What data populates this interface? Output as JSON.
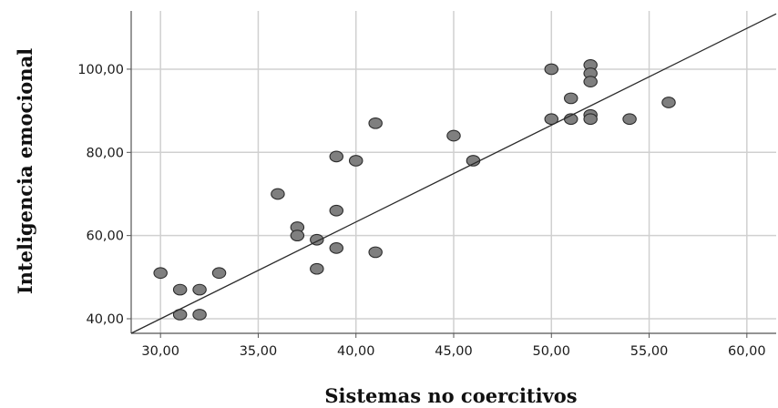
{
  "chart_data": {
    "type": "scatter",
    "title": "",
    "xlabel": "Sistemas no coercitivos",
    "ylabel": "Inteligencia emocional",
    "xlim": [
      28.5,
      61.5
    ],
    "ylim": [
      36.5,
      114
    ],
    "grid": true,
    "x_ticks": [
      30,
      35,
      40,
      45,
      50,
      55,
      60
    ],
    "y_ticks": [
      40,
      60,
      80,
      100
    ],
    "x_tick_labels": [
      "30,00",
      "35,00",
      "40,00",
      "45,00",
      "50,00",
      "55,00",
      "60,00"
    ],
    "y_tick_labels": [
      "40,00",
      "60,00",
      "80,00",
      "100,00"
    ],
    "points": [
      {
        "x": 30,
        "y": 51
      },
      {
        "x": 31,
        "y": 47
      },
      {
        "x": 31,
        "y": 41
      },
      {
        "x": 32,
        "y": 47
      },
      {
        "x": 32,
        "y": 41
      },
      {
        "x": 33,
        "y": 51
      },
      {
        "x": 36,
        "y": 70
      },
      {
        "x": 37,
        "y": 62
      },
      {
        "x": 37,
        "y": 60
      },
      {
        "x": 38,
        "y": 59
      },
      {
        "x": 38,
        "y": 52
      },
      {
        "x": 39,
        "y": 79
      },
      {
        "x": 39,
        "y": 66
      },
      {
        "x": 39,
        "y": 57
      },
      {
        "x": 40,
        "y": 78
      },
      {
        "x": 41,
        "y": 87
      },
      {
        "x": 41,
        "y": 56
      },
      {
        "x": 45,
        "y": 84
      },
      {
        "x": 46,
        "y": 78
      },
      {
        "x": 50,
        "y": 100
      },
      {
        "x": 50,
        "y": 88
      },
      {
        "x": 51,
        "y": 93
      },
      {
        "x": 51,
        "y": 88
      },
      {
        "x": 52,
        "y": 101
      },
      {
        "x": 52,
        "y": 99
      },
      {
        "x": 52,
        "y": 97
      },
      {
        "x": 52,
        "y": 89
      },
      {
        "x": 52,
        "y": 88
      },
      {
        "x": 54,
        "y": 88
      },
      {
        "x": 56,
        "y": 92
      }
    ],
    "fit_line": {
      "x": [
        28.5,
        61.5
      ],
      "y": [
        36.5,
        113.3
      ]
    },
    "colors": {
      "marker_fill": "#7f7f7f",
      "marker_stroke": "#2b2b2b",
      "grid": "#d0d0d0",
      "axis": "#555555",
      "fit_line": "#2b2b2b"
    }
  }
}
